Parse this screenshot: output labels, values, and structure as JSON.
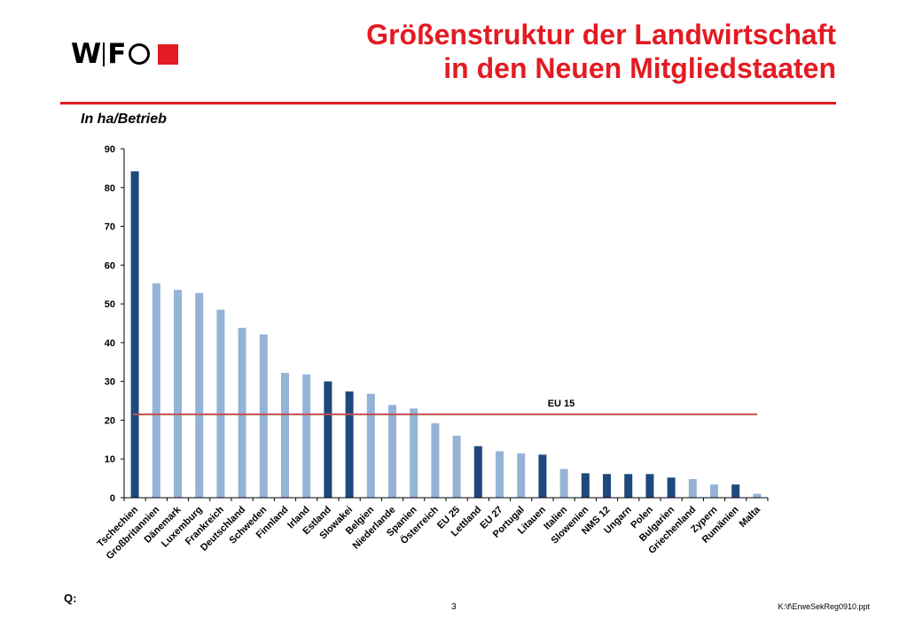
{
  "logo": {
    "text_left": "W",
    "text_mid": "F",
    "accent_color": "#e31b23"
  },
  "title": {
    "line1": "Größenstruktur der Landwirtschaft",
    "line2": "in den Neuen Mitgliedstaaten"
  },
  "unit_label": "In ha/Betrieb",
  "chart_data": {
    "type": "bar",
    "categories": [
      "Tschechien",
      "Großbritannien",
      "Dänemark",
      "Luxemburg",
      "Frankreich",
      "Deutschland",
      "Schweden",
      "Finnland",
      "Irland",
      "Estland",
      "Slowakei",
      "Belgien",
      "Niederlande",
      "Spanien",
      "Österreich",
      "EU 25",
      "Lettland",
      "EU 27",
      "Portugal",
      "Litauen",
      "Italien",
      "Slowenien",
      "NMS 12",
      "Ungarn",
      "Polen",
      "Bulgarien",
      "Griechenland",
      "Zypern",
      "Rumänien",
      "Malta"
    ],
    "values": [
      84.2,
      55.3,
      53.6,
      52.8,
      48.5,
      43.8,
      42.1,
      32.2,
      31.8,
      30.0,
      27.4,
      26.8,
      23.9,
      23.0,
      19.2,
      16.0,
      13.3,
      12.0,
      11.4,
      11.1,
      7.4,
      6.3,
      6.1,
      6.1,
      6.1,
      5.2,
      4.8,
      3.4,
      3.4,
      1.0
    ],
    "highlight": [
      true,
      false,
      false,
      false,
      false,
      false,
      false,
      false,
      false,
      true,
      true,
      false,
      false,
      false,
      false,
      false,
      true,
      false,
      false,
      true,
      false,
      true,
      true,
      true,
      true,
      true,
      false,
      false,
      true,
      false
    ],
    "colors": {
      "highlight": "#1f497d",
      "normal": "#95b3d7",
      "reference": "#c0504d"
    },
    "reference_line": {
      "label": "EU 15",
      "value": 21.5
    },
    "ylim": [
      0,
      90
    ],
    "yticks": [
      0,
      10,
      20,
      30,
      40,
      50,
      60,
      70,
      80,
      90
    ],
    "grid": false
  },
  "footer": {
    "q_label": "Q:",
    "page_number": "3",
    "file_path": "K:\\f\\ErweSekReg0910.ppt"
  }
}
